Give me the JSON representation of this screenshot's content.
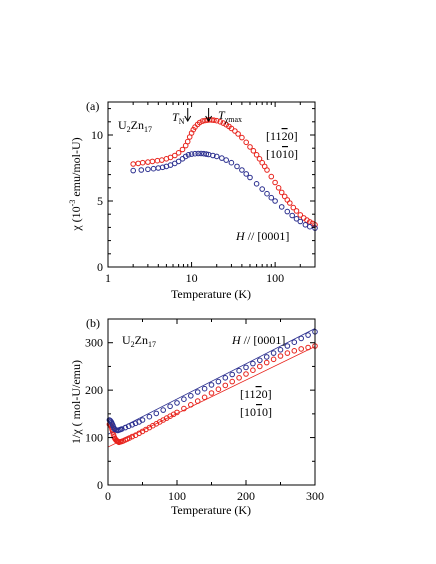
{
  "chart_data": [
    {
      "panel_label": "(a)",
      "type": "scatter",
      "material": "U",
      "material_sub1": "2",
      "material_mid": "Zn",
      "material_sub2": "17",
      "xlabel": "Temperature (K)",
      "ylabel": "χ (10",
      "ylabel_sup": "-3",
      "ylabel_tail": " emu/mol-U)",
      "xscale": "log",
      "xlim": [
        1,
        300
      ],
      "ylim": [
        0,
        12.5
      ],
      "xticks": [
        1,
        10,
        100
      ],
      "xtick_labels": [
        "1",
        "10",
        "100"
      ],
      "yticks": [
        0,
        5,
        10
      ],
      "ytick_labels": [
        "0",
        "5",
        "10"
      ],
      "annotations": {
        "tn_base": "T",
        "tn_sub": "N",
        "tmax_base": "T",
        "tmax_sub": "χmax",
        "tn_x": 9,
        "tmax_x": 16,
        "red_dir1": "[11",
        "red_dir1_bar": "2",
        "red_dir1_end": "0]",
        "red_dir2": "[10",
        "red_dir2_bar": "1",
        "red_dir2_end": "0]",
        "blue_h": "H",
        "blue_par": " // ",
        "blue_dir": "[0001]"
      },
      "series": [
        {
          "color": "#e8231c",
          "x": [
            2,
            2.3,
            2.6,
            3,
            3.4,
            3.9,
            4.4,
            5,
            5.6,
            6.3,
            7,
            7.8,
            8.5,
            9,
            9.5,
            10,
            10.5,
            11,
            11.8,
            12.5,
            13.5,
            14.5,
            15.5,
            16.5,
            17.5,
            18.5,
            20,
            22,
            24,
            26,
            28,
            30,
            33,
            36,
            40,
            45,
            50,
            55,
            60,
            65,
            70,
            75,
            80,
            90,
            100,
            110,
            120,
            130,
            140,
            150,
            165,
            180,
            200,
            220,
            240,
            260,
            280,
            300
          ],
          "y": [
            7.8,
            7.85,
            7.9,
            7.95,
            8.0,
            8.05,
            8.1,
            8.2,
            8.3,
            8.45,
            8.65,
            8.9,
            9.2,
            9.5,
            9.85,
            10.15,
            10.4,
            10.6,
            10.8,
            10.95,
            11.05,
            11.1,
            11.13,
            11.15,
            11.14,
            11.12,
            11.08,
            11.0,
            10.9,
            10.78,
            10.65,
            10.5,
            10.3,
            10.08,
            9.8,
            9.45,
            9.1,
            8.8,
            8.5,
            8.2,
            7.9,
            7.62,
            7.35,
            6.85,
            6.4,
            6.0,
            5.65,
            5.35,
            5.08,
            4.85,
            4.5,
            4.25,
            3.95,
            3.72,
            3.55,
            3.42,
            3.3,
            3.2
          ]
        },
        {
          "color": "#2b2f8f",
          "x": [
            2,
            2.5,
            3,
            3.5,
            4,
            4.5,
            5,
            5.6,
            6.3,
            7,
            7.8,
            8.5,
            9.2,
            10,
            11,
            12,
            13,
            14,
            15,
            16,
            18,
            20,
            23,
            26,
            30,
            35,
            40,
            45,
            50,
            60,
            70,
            80,
            90,
            100,
            120,
            140,
            160,
            180,
            200,
            230,
            260,
            300
          ],
          "y": [
            7.3,
            7.35,
            7.4,
            7.45,
            7.5,
            7.55,
            7.62,
            7.72,
            7.85,
            8.0,
            8.2,
            8.38,
            8.5,
            8.55,
            8.58,
            8.6,
            8.6,
            8.58,
            8.55,
            8.52,
            8.45,
            8.38,
            8.25,
            8.1,
            7.9,
            7.62,
            7.35,
            7.05,
            6.78,
            6.3,
            5.9,
            5.55,
            5.25,
            5.0,
            4.55,
            4.2,
            3.9,
            3.65,
            3.45,
            3.2,
            3.05,
            2.95
          ]
        }
      ]
    },
    {
      "panel_label": "(b)",
      "type": "scatter",
      "material": "U",
      "material_sub1": "2",
      "material_mid": "Zn",
      "material_sub2": "17",
      "xlabel": "Temperature (K)",
      "ylabel": "1/χ ( mol-U/emu)",
      "xlim": [
        0,
        300
      ],
      "ylim": [
        0,
        350
      ],
      "xticks": [
        0,
        100,
        200,
        300
      ],
      "xtick_labels": [
        "0",
        "100",
        "200",
        "300"
      ],
      "yticks": [
        0,
        100,
        200,
        300
      ],
      "ytick_labels": [
        "0",
        "100",
        "200",
        "300"
      ],
      "annotations": {
        "blue_h": "H",
        "blue_par": " // ",
        "blue_dir": "[0001]",
        "red_dir1": "[11",
        "red_dir1_bar": "2",
        "red_dir1_end": "0]",
        "red_dir2": "[10",
        "red_dir2_bar": "1",
        "red_dir2_end": "0]"
      },
      "fit_lines": [
        {
          "color": "#e8231c",
          "x": [
            0,
            300
          ],
          "y": [
            80,
            292
          ]
        },
        {
          "color": "#2b2f8f",
          "x": [
            0,
            300
          ],
          "y": [
            107,
            330
          ]
        }
      ],
      "series": [
        {
          "color": "#e8231c",
          "x": [
            2,
            3,
            4,
            5,
            6,
            7,
            8,
            9,
            10,
            11,
            12,
            13,
            14,
            15,
            16,
            18,
            20,
            22,
            25,
            28,
            31,
            35,
            40,
            45,
            50,
            55,
            60,
            65,
            70,
            75,
            80,
            85,
            90,
            95,
            100,
            110,
            120,
            130,
            140,
            150,
            160,
            170,
            180,
            190,
            200,
            210,
            220,
            230,
            240,
            250,
            260,
            270,
            280,
            290,
            300
          ],
          "y": [
            128,
            127,
            125,
            122,
            117,
            112,
            106,
            101,
            98,
            96,
            94,
            93,
            92,
            91,
            90,
            91,
            92,
            93,
            95,
            97,
            99,
            102,
            105,
            109,
            113,
            117,
            121,
            125,
            129,
            133,
            137,
            141,
            145,
            149,
            153,
            161,
            169,
            177,
            185,
            194,
            202,
            210,
            218,
            226,
            234,
            242,
            250,
            258,
            265,
            272,
            278,
            283,
            287,
            290,
            293
          ]
        },
        {
          "color": "#2b2f8f",
          "x": [
            2,
            3,
            4,
            5,
            6,
            7,
            8,
            9,
            10,
            12,
            14,
            16,
            18,
            20,
            25,
            30,
            35,
            40,
            45,
            50,
            60,
            70,
            80,
            90,
            100,
            110,
            120,
            130,
            140,
            150,
            160,
            170,
            180,
            190,
            200,
            210,
            220,
            230,
            240,
            250,
            260,
            270,
            280,
            290,
            300
          ],
          "y": [
            137,
            136,
            134,
            132,
            129,
            126,
            122,
            119,
            117,
            116,
            115,
            116,
            117,
            118,
            121,
            124,
            127,
            130,
            133,
            137,
            144,
            151,
            158,
            166,
            173,
            181,
            188,
            196,
            203,
            211,
            218,
            226,
            233,
            241,
            248,
            256,
            263,
            270,
            278,
            285,
            293,
            301,
            309,
            316,
            323
          ]
        }
      ]
    }
  ]
}
